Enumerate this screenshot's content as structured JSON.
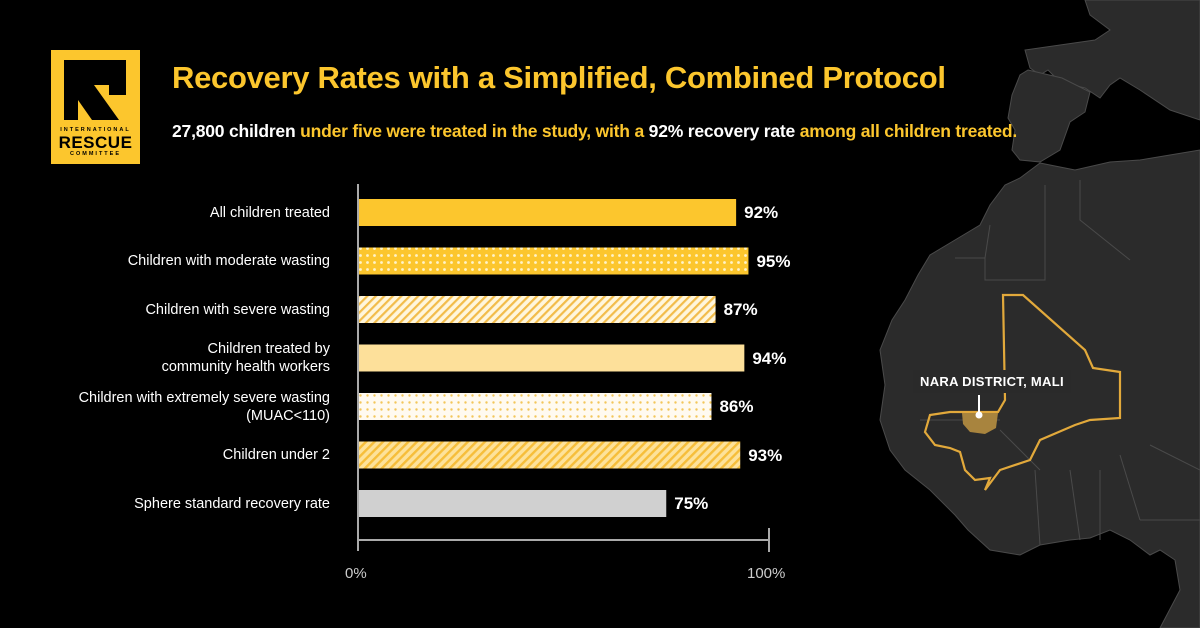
{
  "logo": {
    "line1": "INTERNATIONAL",
    "line2": "RESCUE",
    "line3": "COMMITTEE"
  },
  "header": {
    "title": "Recovery Rates with a Simplified, Combined Protocol",
    "subtitle_parts": [
      {
        "text": "27,800 children ",
        "tone": "white"
      },
      {
        "text": "under five were treated in the study, with a ",
        "tone": "yellow"
      },
      {
        "text": "92% recovery rate ",
        "tone": "white"
      },
      {
        "text": "among all children treated.",
        "tone": "yellow"
      }
    ]
  },
  "map": {
    "callout": "NARA DISTRICT, MALI"
  },
  "colors": {
    "brand_yellow": "#fcc62d",
    "light_yellow": "#fde09a",
    "grey_bar": "#d0d0d0",
    "map_land": "#2b2b2b",
    "mali_outline": "#e2a93b",
    "nara_fill": "#a8843e"
  },
  "chart_data": {
    "type": "bar",
    "orientation": "horizontal",
    "title": "Recovery Rates with a Simplified, Combined Protocol",
    "xlabel": "",
    "ylabel": "",
    "xlim": [
      0,
      100
    ],
    "x_ticks": [
      "0%",
      "100%"
    ],
    "grid": false,
    "categories": [
      [
        "All children treated"
      ],
      [
        "Children with moderate wasting"
      ],
      [
        "Children with severe wasting"
      ],
      [
        "Children treated by",
        "community health workers"
      ],
      [
        "Children with extremely severe wasting",
        "(MUAC<110)"
      ],
      [
        "Children under 2"
      ],
      [
        "Sphere standard recovery rate"
      ]
    ],
    "values": [
      92,
      95,
      87,
      94,
      86,
      93,
      75
    ],
    "value_labels": [
      "92%",
      "95%",
      "87%",
      "94%",
      "86%",
      "93%",
      "75%"
    ],
    "fills": [
      "solid-yellow",
      "dots-yellow",
      "stripes-light",
      "solid-light",
      "dots-light",
      "stripes-yellow",
      "solid-grey"
    ]
  }
}
